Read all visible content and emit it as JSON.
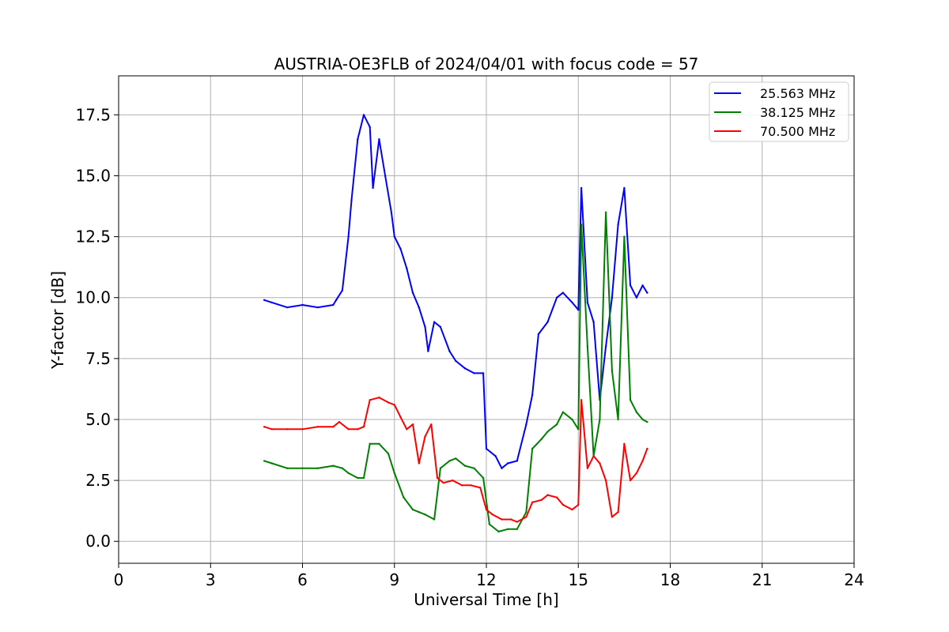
{
  "chart_data": {
    "type": "line",
    "title": "AUSTRIA-OE3FLB of 2024/04/01 with focus code = 57",
    "xlabel": "Universal Time [h]",
    "ylabel": "Y-factor [dB]",
    "xlim": [
      0,
      24
    ],
    "ylim": [
      -0.9,
      19.1
    ],
    "xticks": [
      "0",
      "3",
      "6",
      "9",
      "12",
      "15",
      "18",
      "21",
      "24"
    ],
    "yticks": [
      "0.0",
      "2.5",
      "5.0",
      "7.5",
      "10.0",
      "12.5",
      "15.0",
      "17.5"
    ],
    "grid": true,
    "legend_position": "top-right",
    "series": [
      {
        "name": "25.563 MHz",
        "color": "#0000ff",
        "x": [
          4.75,
          5.0,
          5.5,
          6.0,
          6.5,
          7.0,
          7.1,
          7.3,
          7.5,
          7.6,
          7.8,
          8.0,
          8.2,
          8.3,
          8.5,
          8.7,
          8.9,
          9.0,
          9.2,
          9.4,
          9.6,
          9.8,
          10.0,
          10.1,
          10.3,
          10.5,
          10.8,
          11.0,
          11.3,
          11.6,
          11.9,
          12.0,
          12.3,
          12.5,
          12.7,
          13.0,
          13.3,
          13.5,
          13.7,
          14.0,
          14.3,
          14.5,
          14.8,
          15.0,
          15.1,
          15.3,
          15.5,
          15.7,
          15.9,
          16.1,
          16.3,
          16.5,
          16.7,
          16.9,
          17.1,
          17.25
        ],
        "y": [
          9.9,
          9.8,
          9.6,
          9.7,
          9.6,
          9.7,
          9.9,
          10.3,
          12.5,
          14.0,
          16.5,
          17.5,
          17.0,
          14.5,
          16.5,
          15.0,
          13.5,
          12.5,
          12.0,
          11.2,
          10.2,
          9.6,
          8.8,
          7.8,
          9.0,
          8.8,
          7.8,
          7.4,
          7.1,
          6.9,
          6.9,
          3.8,
          3.5,
          3.0,
          3.2,
          3.3,
          4.8,
          6.0,
          8.5,
          9.0,
          10.0,
          10.2,
          9.8,
          9.5,
          14.5,
          9.8,
          9.0,
          5.8,
          8.0,
          10.0,
          13.0,
          14.5,
          10.5,
          10.0,
          10.5,
          10.2
        ]
      },
      {
        "name": "38.125 MHz",
        "color": "#008000",
        "x": [
          4.75,
          5.0,
          5.5,
          6.0,
          6.5,
          7.0,
          7.3,
          7.5,
          7.8,
          8.0,
          8.2,
          8.5,
          8.8,
          9.0,
          9.3,
          9.6,
          9.8,
          10.0,
          10.3,
          10.5,
          10.8,
          11.0,
          11.3,
          11.6,
          11.9,
          12.1,
          12.4,
          12.7,
          13.0,
          13.3,
          13.5,
          13.8,
          14.0,
          14.3,
          14.5,
          14.8,
          15.0,
          15.1,
          15.3,
          15.5,
          15.7,
          15.9,
          16.1,
          16.3,
          16.5,
          16.7,
          16.9,
          17.1,
          17.25
        ],
        "y": [
          3.3,
          3.2,
          3.0,
          3.0,
          3.0,
          3.1,
          3.0,
          2.8,
          2.6,
          2.6,
          4.0,
          4.0,
          3.6,
          2.8,
          1.8,
          1.3,
          1.2,
          1.1,
          0.9,
          3.0,
          3.3,
          3.4,
          3.1,
          3.0,
          2.6,
          0.7,
          0.4,
          0.5,
          0.5,
          1.2,
          3.8,
          4.2,
          4.5,
          4.8,
          5.3,
          5.0,
          4.6,
          13.0,
          8.0,
          3.5,
          5.0,
          13.5,
          7.0,
          5.0,
          12.5,
          5.8,
          5.3,
          5.0,
          4.9
        ]
      },
      {
        "name": "70.500 MHz",
        "color": "#ff0000",
        "x": [
          4.75,
          5.0,
          5.5,
          6.0,
          6.5,
          7.0,
          7.2,
          7.5,
          7.8,
          8.0,
          8.2,
          8.5,
          8.8,
          9.0,
          9.2,
          9.4,
          9.6,
          9.8,
          10.0,
          10.2,
          10.4,
          10.6,
          10.9,
          11.2,
          11.5,
          11.8,
          12.0,
          12.2,
          12.5,
          12.8,
          13.0,
          13.3,
          13.5,
          13.8,
          14.0,
          14.3,
          14.5,
          14.8,
          15.0,
          15.1,
          15.3,
          15.5,
          15.7,
          15.9,
          16.1,
          16.3,
          16.5,
          16.7,
          16.9,
          17.1,
          17.25
        ],
        "y": [
          4.7,
          4.6,
          4.6,
          4.6,
          4.7,
          4.7,
          4.9,
          4.6,
          4.6,
          4.7,
          5.8,
          5.9,
          5.7,
          5.6,
          5.1,
          4.6,
          4.8,
          3.2,
          4.3,
          4.8,
          2.6,
          2.4,
          2.5,
          2.3,
          2.3,
          2.2,
          1.3,
          1.1,
          0.9,
          0.9,
          0.8,
          1.0,
          1.6,
          1.7,
          1.9,
          1.8,
          1.5,
          1.3,
          1.5,
          5.8,
          3.0,
          3.5,
          3.2,
          2.5,
          1.0,
          1.2,
          4.0,
          2.5,
          2.8,
          3.3,
          3.8
        ]
      }
    ]
  }
}
